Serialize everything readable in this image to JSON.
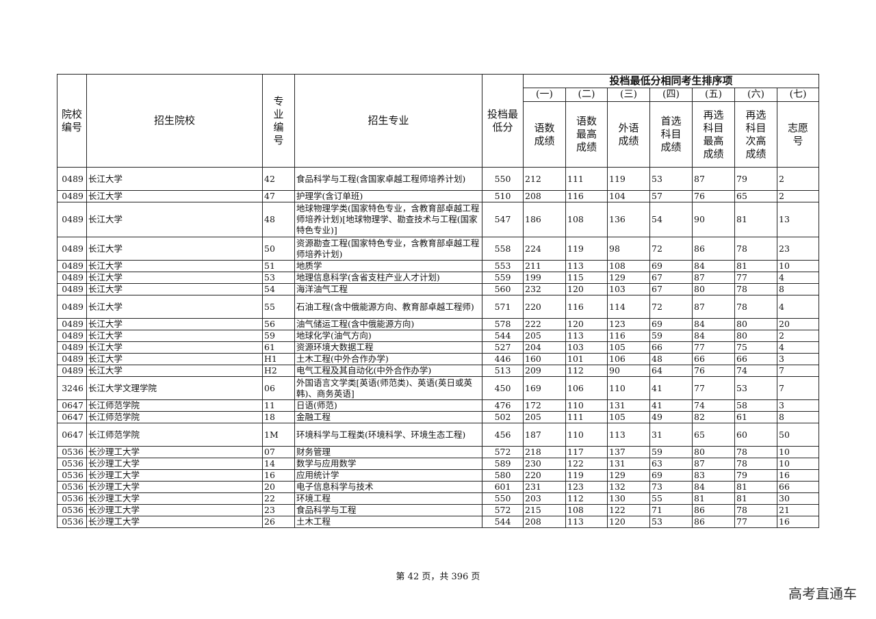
{
  "header": {
    "school_code": "院校编号",
    "school": "招生院校",
    "major_code": "专业编号",
    "major": "招生专业",
    "min_score": "投档最低分",
    "tiebreak_group": "投档最低分相同考生排序项",
    "tiebreak_numbers": [
      "(一)",
      "(二)",
      "(三)",
      "(四)",
      "(五)",
      "(六)",
      "(七)"
    ],
    "tiebreak_items": [
      "语数成绩",
      "语数最高成绩",
      "外语成绩",
      "首选科目成绩",
      "再选科目最高成绩",
      "再选科目次高成绩",
      "志愿号"
    ]
  },
  "rows": [
    {
      "lines": 2,
      "cells": [
        "0489",
        "长江大学",
        "42",
        "食品科学与工程(含国家卓越工程师培养计划)",
        "550",
        "212",
        "111",
        "119",
        "53",
        "87",
        "79",
        "2"
      ]
    },
    {
      "lines": 1,
      "cells": [
        "0489",
        "长江大学",
        "47",
        "护理学(含订单班)",
        "510",
        "208",
        "116",
        "104",
        "57",
        "76",
        "65",
        "2"
      ]
    },
    {
      "lines": 3,
      "cells": [
        "0489",
        "长江大学",
        "48",
        "地球物理学类(国家特色专业，含教育部卓越工程师培养计划)[地球物理学、勘查技术与工程(国家特色专业)]",
        "547",
        "186",
        "108",
        "136",
        "54",
        "90",
        "81",
        "13"
      ]
    },
    {
      "lines": 2,
      "cells": [
        "0489",
        "长江大学",
        "50",
        "资源勘查工程(国家特色专业，含教育部卓越工程师培养计划)",
        "558",
        "224",
        "119",
        "98",
        "72",
        "86",
        "78",
        "23"
      ]
    },
    {
      "lines": 1,
      "cells": [
        "0489",
        "长江大学",
        "51",
        "地质学",
        "553",
        "211",
        "113",
        "108",
        "69",
        "84",
        "81",
        "10"
      ]
    },
    {
      "lines": 1,
      "cells": [
        "0489",
        "长江大学",
        "53",
        "地理信息科学(含省支柱产业人才计划)",
        "559",
        "199",
        "115",
        "129",
        "67",
        "87",
        "77",
        "4"
      ]
    },
    {
      "lines": 1,
      "cells": [
        "0489",
        "长江大学",
        "54",
        "海洋油气工程",
        "560",
        "232",
        "120",
        "103",
        "67",
        "80",
        "78",
        "8"
      ]
    },
    {
      "lines": 2,
      "cells": [
        "0489",
        "长江大学",
        "55",
        "石油工程(含中俄能源方向、教育部卓越工程师)",
        "571",
        "220",
        "116",
        "114",
        "72",
        "87",
        "78",
        "4"
      ]
    },
    {
      "lines": 1,
      "cells": [
        "0489",
        "长江大学",
        "56",
        "油气储运工程(含中俄能源方向)",
        "578",
        "222",
        "120",
        "123",
        "69",
        "84",
        "80",
        "20"
      ]
    },
    {
      "lines": 1,
      "cells": [
        "0489",
        "长江大学",
        "59",
        "地球化学(油气方向)",
        "544",
        "205",
        "113",
        "116",
        "59",
        "84",
        "80",
        "2"
      ]
    },
    {
      "lines": 1,
      "cells": [
        "0489",
        "长江大学",
        "61",
        "资源环境大数据工程",
        "527",
        "204",
        "103",
        "105",
        "66",
        "77",
        "75",
        "4"
      ]
    },
    {
      "lines": 1,
      "cells": [
        "0489",
        "长江大学",
        "H1",
        "土木工程(中外合作办学)",
        "446",
        "160",
        "101",
        "106",
        "48",
        "66",
        "66",
        "3"
      ]
    },
    {
      "lines": 1,
      "cells": [
        "0489",
        "长江大学",
        "H2",
        "电气工程及其自动化(中外合作办学)",
        "513",
        "209",
        "112",
        "90",
        "64",
        "76",
        "74",
        "7"
      ]
    },
    {
      "lines": 2,
      "cells": [
        "3246",
        "长江大学文理学院",
        "06",
        "外国语言文学类[英语(师范类)、英语(英日或英韩)、商务英语]",
        "450",
        "169",
        "106",
        "110",
        "41",
        "77",
        "53",
        "7"
      ]
    },
    {
      "lines": 1,
      "cells": [
        "0647",
        "长江师范学院",
        "11",
        "日语(师范)",
        "476",
        "172",
        "110",
        "131",
        "41",
        "74",
        "58",
        "3"
      ]
    },
    {
      "lines": 1,
      "cells": [
        "0647",
        "长江师范学院",
        "18",
        "金融工程",
        "502",
        "205",
        "111",
        "105",
        "49",
        "82",
        "61",
        "8"
      ]
    },
    {
      "lines": 2,
      "cells": [
        "0647",
        "长江师范学院",
        "1M",
        "环境科学与工程类(环境科学、环境生态工程)",
        "456",
        "187",
        "110",
        "113",
        "31",
        "65",
        "60",
        "50"
      ]
    },
    {
      "lines": 1,
      "cells": [
        "0536",
        "长沙理工大学",
        "07",
        "财务管理",
        "572",
        "218",
        "117",
        "137",
        "59",
        "80",
        "78",
        "10"
      ]
    },
    {
      "lines": 1,
      "cells": [
        "0536",
        "长沙理工大学",
        "14",
        "数学与应用数学",
        "589",
        "230",
        "122",
        "131",
        "63",
        "87",
        "78",
        "10"
      ]
    },
    {
      "lines": 1,
      "cells": [
        "0536",
        "长沙理工大学",
        "16",
        "应用统计学",
        "580",
        "220",
        "119",
        "129",
        "69",
        "83",
        "79",
        "16"
      ]
    },
    {
      "lines": 1,
      "cells": [
        "0536",
        "长沙理工大学",
        "20",
        "电子信息科学与技术",
        "601",
        "231",
        "123",
        "132",
        "73",
        "84",
        "81",
        "66"
      ]
    },
    {
      "lines": 1,
      "cells": [
        "0536",
        "长沙理工大学",
        "22",
        "环境工程",
        "550",
        "203",
        "112",
        "130",
        "55",
        "81",
        "81",
        "30"
      ]
    },
    {
      "lines": 1,
      "cells": [
        "0536",
        "长沙理工大学",
        "23",
        "食品科学与工程",
        "572",
        "215",
        "108",
        "122",
        "71",
        "86",
        "78",
        "21"
      ]
    },
    {
      "lines": 1,
      "cells": [
        "0536",
        "长沙理工大学",
        "26",
        "土木工程",
        "544",
        "208",
        "113",
        "120",
        "53",
        "86",
        "77",
        "16"
      ]
    }
  ],
  "footer": {
    "page_text": "第 42 页，共 396 页"
  },
  "watermark": "高考直通车"
}
